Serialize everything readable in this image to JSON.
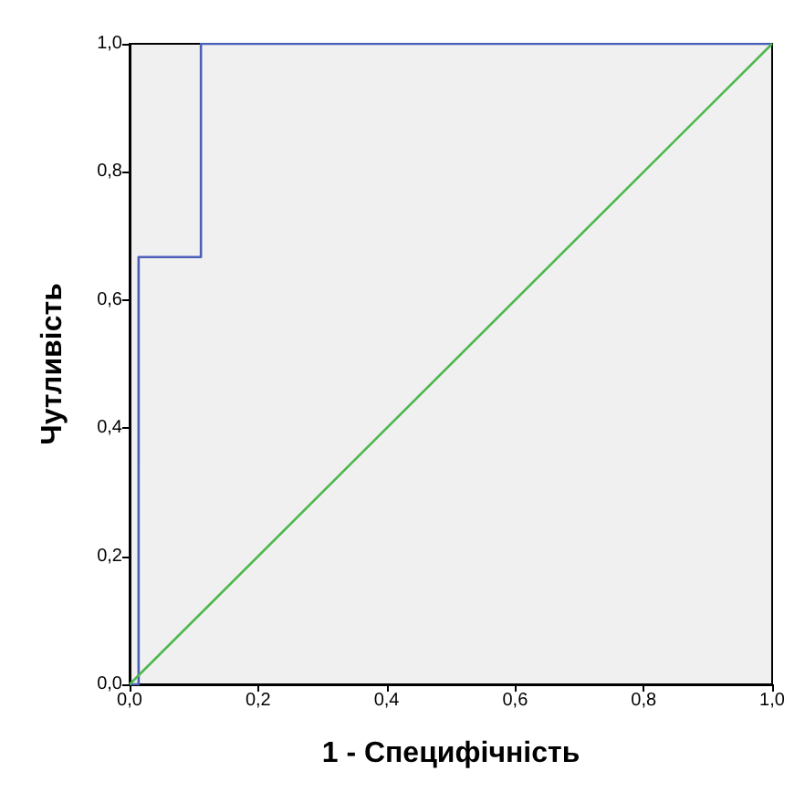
{
  "chart_data": {
    "type": "line",
    "xlabel": "1 - Специфічність",
    "ylabel": "Чутливість",
    "series": [
      {
        "color": "#4a5fb8",
        "x": [
          0,
          0.014,
          0.014,
          0.111,
          0.111,
          1
        ],
        "values": [
          0,
          0,
          0.667,
          0.667,
          1,
          1
        ]
      },
      {
        "color": "#4cb84c",
        "x": [
          0,
          1
        ],
        "values": [
          0,
          1
        ]
      }
    ],
    "xlim": [
      0,
      1
    ],
    "ylim": [
      0,
      1
    ],
    "xticks": [
      {
        "value": 0,
        "label": "0,0"
      },
      {
        "value": 0.2,
        "label": "0,2"
      },
      {
        "value": 0.4,
        "label": "0,4"
      },
      {
        "value": 0.6,
        "label": "0,6"
      },
      {
        "value": 0.8,
        "label": "0,8"
      },
      {
        "value": 1,
        "label": "1,0"
      }
    ],
    "yticks": [
      {
        "value": 0,
        "label": "0,0"
      },
      {
        "value": 0.2,
        "label": "0,2"
      },
      {
        "value": 0.4,
        "label": "0,4"
      },
      {
        "value": 0.6,
        "label": "0,6"
      },
      {
        "value": 0.8,
        "label": "0,8"
      },
      {
        "value": 1,
        "label": "1,0"
      }
    ],
    "grid": false,
    "marker": "none",
    "line_style": "solid"
  }
}
